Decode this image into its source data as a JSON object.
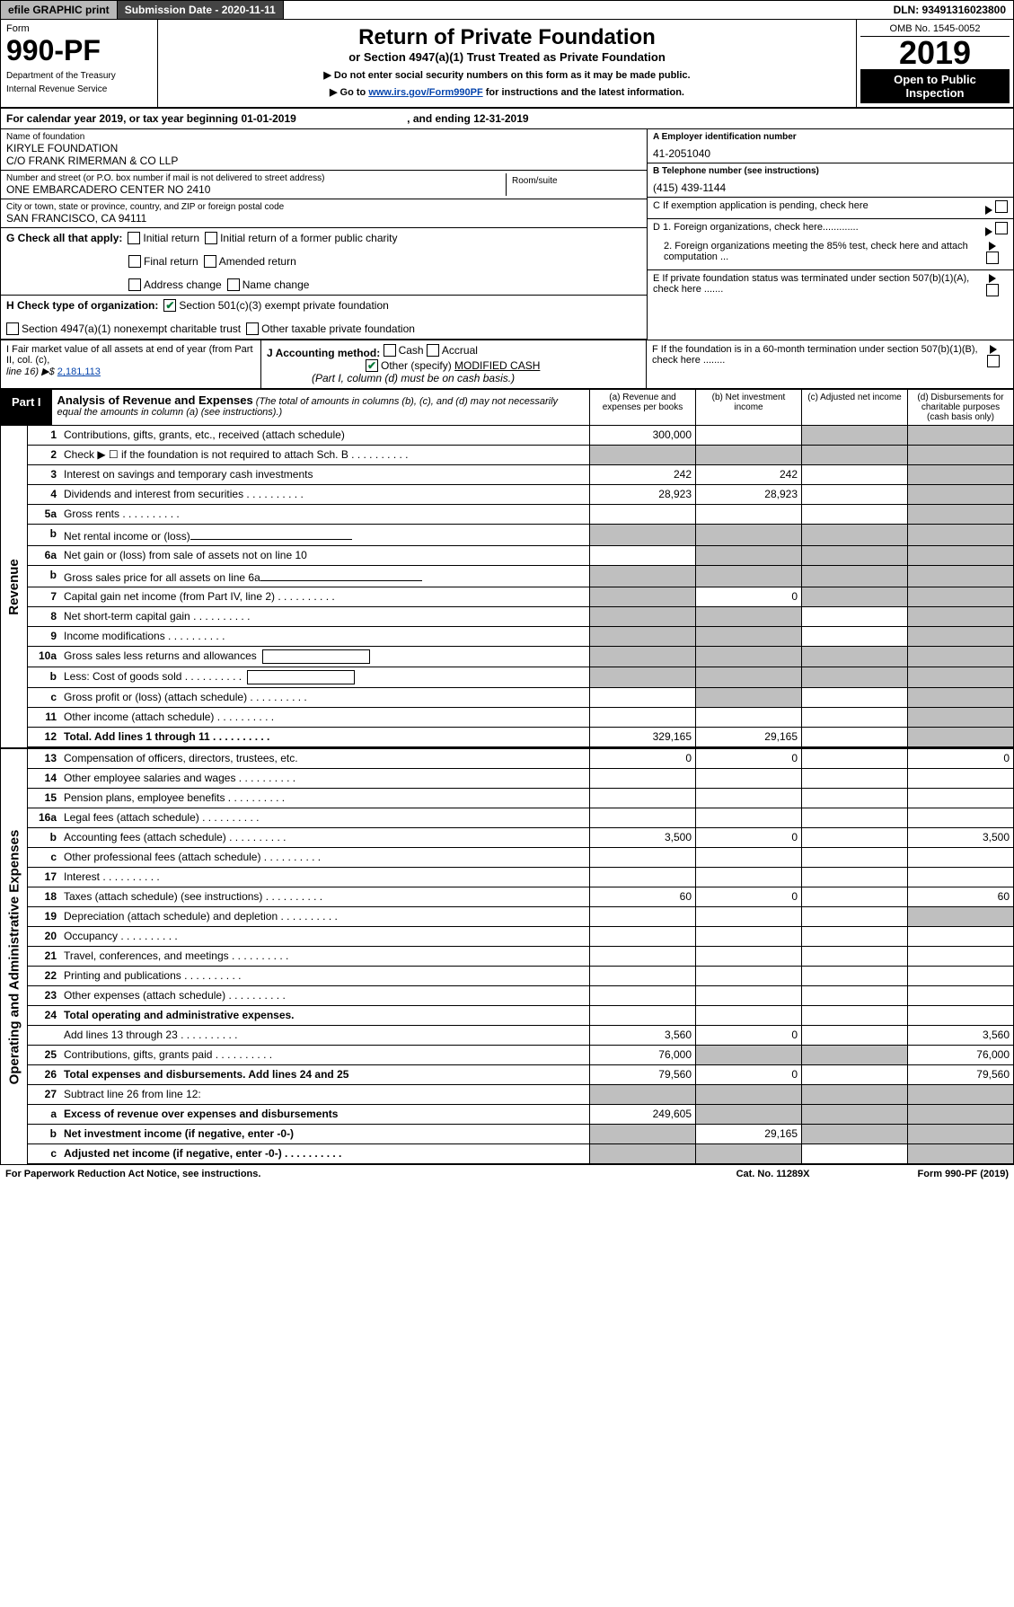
{
  "top": {
    "efile": "efile GRAPHIC print",
    "submission": "Submission Date - 2020-11-11",
    "dln": "DLN: 93491316023800"
  },
  "header": {
    "form": "Form",
    "num": "990-PF",
    "dept": "Department of the Treasury",
    "irs": "Internal Revenue Service",
    "title": "Return of Private Foundation",
    "sub": "or Section 4947(a)(1) Trust Treated as Private Foundation",
    "l1": "▶ Do not enter social security numbers on this form as it may be made public.",
    "l2p": "▶ Go to ",
    "l2link": "www.irs.gov/Form990PF",
    "l2s": " for instructions and the latest information.",
    "omb": "OMB No. 1545-0052",
    "year": "2019",
    "open": "Open to Public Inspection"
  },
  "cal": {
    "p1": "For calendar year 2019, or tax year beginning 01-01-2019",
    "p2": ", and ending 12-31-2019"
  },
  "info": {
    "name_l": "Name of foundation",
    "name": "KIRYLE FOUNDATION",
    "name2": "C/O FRANK RIMERMAN & CO LLP",
    "addr_l": "Number and street (or P.O. box number if mail is not delivered to street address)",
    "addr": "ONE EMBARCADERO CENTER NO 2410",
    "room_l": "Room/suite",
    "city_l": "City or town, state or province, country, and ZIP or foreign postal code",
    "city": "SAN FRANCISCO, CA  94111",
    "ein_l": "A Employer identification number",
    "ein": "41-2051040",
    "tel_l": "B Telephone number (see instructions)",
    "tel": "(415) 439-1144",
    "exempt": "C If exemption application is pending, check here",
    "d1": "D 1. Foreign organizations, check here.............",
    "d2": "2. Foreign organizations meeting the 85% test, check here and attach computation ...",
    "e": "E  If private foundation status was terminated under section 507(b)(1)(A), check here .......",
    "f": "F  If the foundation is in a 60-month termination under section 507(b)(1)(B), check here ........"
  },
  "g": {
    "label": "G Check all that apply:",
    "c1": "Initial return",
    "c2": "Initial return of a former public charity",
    "c3": "Final return",
    "c4": "Amended return",
    "c5": "Address change",
    "c6": "Name change"
  },
  "h": {
    "label": "H Check type of organization:",
    "c1": "Section 501(c)(3) exempt private foundation",
    "c2": "Section 4947(a)(1) nonexempt charitable trust",
    "c3": "Other taxable private foundation"
  },
  "fmv": {
    "l1": "I Fair market value of all assets at end of year (from Part II, col. (c),",
    "l2": "line 16) ▶$ ",
    "val": "2,181,113"
  },
  "j": {
    "label": "J Accounting method:",
    "c1": "Cash",
    "c2": "Accrual",
    "c3": "Other (specify)",
    "spec": "MODIFIED CASH",
    "note": "(Part I, column (d) must be on cash basis.)"
  },
  "part1": {
    "label": "Part I",
    "title": "Analysis of Revenue and Expenses",
    "sub": " (The total of amounts in columns (b), (c), and (d) may not necessarily equal the amounts in column (a) (see instructions).)",
    "ca": "(a)   Revenue and expenses per books",
    "cb": "(b)  Net investment income",
    "cc": "(c)  Adjusted net income",
    "cd": "(d)  Disbursements for charitable purposes (cash basis only)"
  },
  "side": {
    "rev": "Revenue",
    "exp": "Operating and Administrative Expenses"
  },
  "rows": [
    {
      "n": "1",
      "t": "Contributions, gifts, grants, etc., received (attach schedule)",
      "a": "300,000",
      "sh": [
        "c",
        "d"
      ]
    },
    {
      "n": "2",
      "t": "Check ▶ ☐ if the foundation is not required to attach Sch. B",
      "dots": 1,
      "sh": [
        "a",
        "b",
        "c",
        "d"
      ]
    },
    {
      "n": "3",
      "t": "Interest on savings and temporary cash investments",
      "a": "242",
      "b": "242",
      "sh": [
        "d"
      ]
    },
    {
      "n": "4",
      "t": "Dividends and interest from securities",
      "dots": 1,
      "a": "28,923",
      "b": "28,923",
      "sh": [
        "d"
      ]
    },
    {
      "n": "5a",
      "t": "Gross rents",
      "dots": 1,
      "sh": [
        "d"
      ]
    },
    {
      "n": "b",
      "t": "Net rental income or (loss)",
      "uline": 1,
      "sh": [
        "a",
        "b",
        "c",
        "d"
      ]
    },
    {
      "n": "6a",
      "t": "Net gain or (loss) from sale of assets not on line 10",
      "sh": [
        "b",
        "c",
        "d"
      ]
    },
    {
      "n": "b",
      "t": "Gross sales price for all assets on line 6a",
      "uline": 1,
      "sh": [
        "a",
        "b",
        "c",
        "d"
      ]
    },
    {
      "n": "7",
      "t": "Capital gain net income (from Part IV, line 2)",
      "dots": 1,
      "b": "0",
      "sh": [
        "a",
        "c",
        "d"
      ]
    },
    {
      "n": "8",
      "t": "Net short-term capital gain",
      "dots": 1,
      "sh": [
        "a",
        "b",
        "d"
      ]
    },
    {
      "n": "9",
      "t": "Income modifications",
      "dots": 1,
      "sh": [
        "a",
        "b",
        "d"
      ]
    },
    {
      "n": "10a",
      "t": "Gross sales less returns and allowances",
      "box": 1,
      "sh": [
        "a",
        "b",
        "c",
        "d"
      ]
    },
    {
      "n": "b",
      "t": "Less: Cost of goods sold",
      "dots": 1,
      "box": 1,
      "sh": [
        "a",
        "b",
        "c",
        "d"
      ]
    },
    {
      "n": "c",
      "t": "Gross profit or (loss) (attach schedule)",
      "dots": 1,
      "sh": [
        "b",
        "d"
      ]
    },
    {
      "n": "11",
      "t": "Other income (attach schedule)",
      "dots": 1,
      "sh": [
        "d"
      ]
    },
    {
      "n": "12",
      "t": "Total. Add lines 1 through 11",
      "dots": 1,
      "bold": 1,
      "a": "329,165",
      "b": "29,165",
      "sh": [
        "d"
      ]
    }
  ],
  "rows2": [
    {
      "n": "13",
      "t": "Compensation of officers, directors, trustees, etc.",
      "a": "0",
      "b": "0",
      "d": "0"
    },
    {
      "n": "14",
      "t": "Other employee salaries and wages",
      "dots": 1
    },
    {
      "n": "15",
      "t": "Pension plans, employee benefits",
      "dots": 1
    },
    {
      "n": "16a",
      "t": "Legal fees (attach schedule)",
      "dots": 1
    },
    {
      "n": "b",
      "t": "Accounting fees (attach schedule)",
      "dots": 1,
      "a": "3,500",
      "b": "0",
      "d": "3,500"
    },
    {
      "n": "c",
      "t": "Other professional fees (attach schedule)",
      "dots": 1
    },
    {
      "n": "17",
      "t": "Interest",
      "dots": 1
    },
    {
      "n": "18",
      "t": "Taxes (attach schedule) (see instructions)",
      "dots": 1,
      "a": "60",
      "b": "0",
      "d": "60"
    },
    {
      "n": "19",
      "t": "Depreciation (attach schedule) and depletion",
      "dots": 1,
      "sh": [
        "d"
      ]
    },
    {
      "n": "20",
      "t": "Occupancy",
      "dots": 1
    },
    {
      "n": "21",
      "t": "Travel, conferences, and meetings",
      "dots": 1
    },
    {
      "n": "22",
      "t": "Printing and publications",
      "dots": 1
    },
    {
      "n": "23",
      "t": "Other expenses (attach schedule)",
      "dots": 1
    },
    {
      "n": "24",
      "t": "Total operating and administrative expenses.",
      "bold": 1,
      "noborder": 1
    },
    {
      "n": "",
      "t": "Add lines 13 through 23",
      "dots": 1,
      "a": "3,560",
      "b": "0",
      "d": "3,560"
    },
    {
      "n": "25",
      "t": "Contributions, gifts, grants paid",
      "dots": 1,
      "a": "76,000",
      "sh": [
        "b",
        "c"
      ],
      "d": "76,000"
    },
    {
      "n": "26",
      "t": "Total expenses and disbursements. Add lines 24 and 25",
      "bold": 1,
      "a": "79,560",
      "b": "0",
      "d": "79,560"
    },
    {
      "n": "27",
      "t": "Subtract line 26 from line 12:",
      "sh": [
        "a",
        "b",
        "c",
        "d"
      ]
    },
    {
      "n": "a",
      "t": "Excess of revenue over expenses and disbursements",
      "bold": 1,
      "a": "249,605",
      "sh": [
        "b",
        "c",
        "d"
      ]
    },
    {
      "n": "b",
      "t": "Net investment income (if negative, enter -0-)",
      "bold": 1,
      "b": "29,165",
      "sh": [
        "a",
        "c",
        "d"
      ]
    },
    {
      "n": "c",
      "t": "Adjusted net income (if negative, enter -0-)",
      "bold": 1,
      "dots": 1,
      "sh": [
        "a",
        "b",
        "d"
      ]
    }
  ],
  "footer": {
    "l": "For Paperwork Reduction Act Notice, see instructions.",
    "m": "Cat. No. 11289X",
    "r": "Form 990-PF (2019)"
  }
}
